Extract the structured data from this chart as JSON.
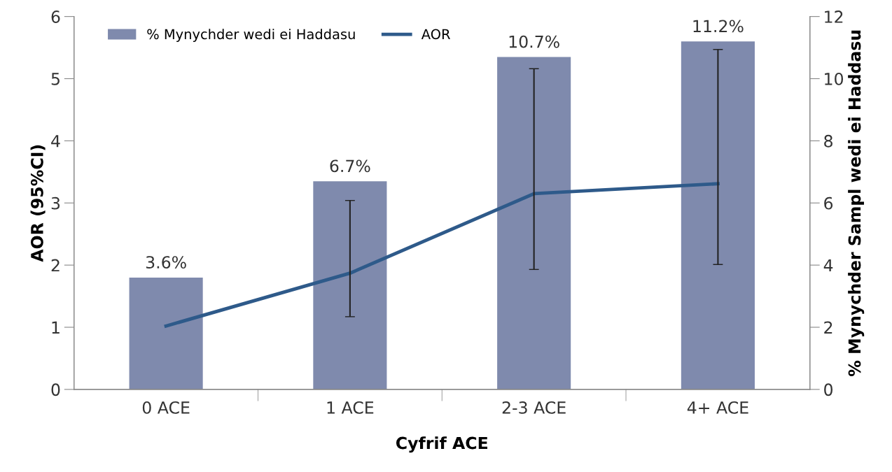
{
  "chart_data": {
    "type": "bar",
    "xlabel": "Cyfrif ACE",
    "ylabel": "AOR (95%CI)",
    "y2label": "% Mynychder Sampl wedi ei Haddasu",
    "categories": [
      "0 ACE",
      "1 ACE",
      "2-3 ACE",
      "4+ ACE"
    ],
    "series": [
      {
        "name": "% Mynychder wedi ei Haddasu",
        "axis": "y2",
        "color": "#7f8aad",
        "values": [
          3.6,
          6.7,
          10.7,
          11.2
        ],
        "value_labels": [
          "3.6%",
          "6.7%",
          "10.7%",
          "11.2%"
        ]
      },
      {
        "name": "AOR",
        "type": "line",
        "color": "#2e5a8a",
        "values": [
          1.02,
          1.87,
          3.15,
          3.31
        ],
        "errors": [
          null,
          [
            1.17,
            3.04
          ],
          [
            1.93,
            5.16
          ],
          [
            2.01,
            5.47
          ]
        ]
      }
    ],
    "ylim": [
      0,
      6
    ],
    "yticks": [
      0,
      1,
      2,
      3,
      4,
      5,
      6
    ],
    "y2lim": [
      0,
      12
    ],
    "y2ticks": [
      0,
      2,
      4,
      6,
      8,
      10,
      12
    ],
    "grid": false,
    "legend": "top left",
    "marker": "none",
    "line_style": "solid"
  }
}
